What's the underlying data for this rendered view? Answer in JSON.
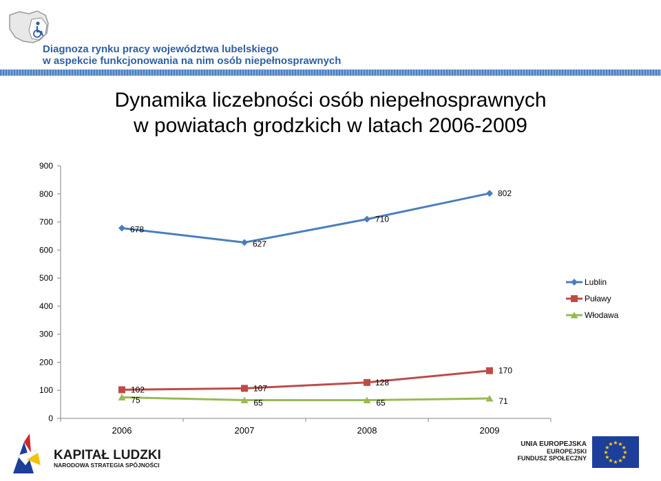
{
  "header": {
    "line1": "Diagnoza rynku pracy województwa lubelskiego",
    "line2": "w aspekcie funkcjonowania na nim osób niepełnosprawnych"
  },
  "chart_data": {
    "type": "line",
    "title_line1": "Dynamika liczebności osób niepełnosprawnych",
    "title_line2": "w powiatach grodzkich w latach 2006-2009",
    "categories": [
      "2006",
      "2007",
      "2008",
      "2009"
    ],
    "ylim": [
      0,
      900
    ],
    "yticks": [
      0,
      100,
      200,
      300,
      400,
      500,
      600,
      700,
      800,
      900
    ],
    "grid": false,
    "legend_position": "right",
    "series": [
      {
        "name": "Lublin",
        "values": [
          678,
          627,
          710,
          802
        ],
        "color": "#4a7ebb",
        "marker": "diamond"
      },
      {
        "name": "Puławy",
        "values": [
          102,
          107,
          128,
          170
        ],
        "color": "#be4b48",
        "marker": "square"
      },
      {
        "name": "Włodawa",
        "values": [
          75,
          65,
          65,
          71
        ],
        "color": "#98b954",
        "marker": "triangle"
      }
    ]
  },
  "footer": {
    "left_title": "KAPITAŁ LUDZKI",
    "left_subtitle": "NARODOWA STRATEGIA SPÓJNOŚCI",
    "eu_line1": "UNIA EUROPEJSKA",
    "eu_line2": "EUROPEJSKI",
    "eu_line3": "FUNDUSZ SPOŁECZNY"
  }
}
